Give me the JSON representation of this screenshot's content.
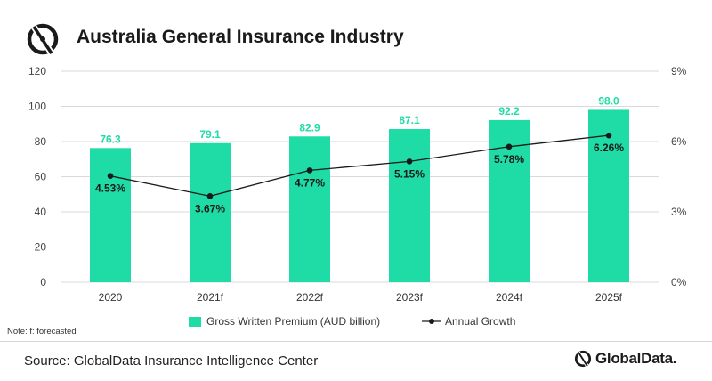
{
  "header": {
    "title": "Australia General Insurance Industry",
    "logo_icon": "globaldata-mark-icon"
  },
  "chart_data": {
    "type": "bar",
    "title": "Australia General Insurance Industry",
    "categories": [
      "2020",
      "2021f",
      "2022f",
      "2023f",
      "2024f",
      "2025f"
    ],
    "series": [
      {
        "name": "Gross Written Premium (AUD billion)",
        "type": "bar",
        "axis": "left",
        "values": [
          76.3,
          79.1,
          82.9,
          87.1,
          92.2,
          98.0
        ],
        "labels": [
          "76.3",
          "79.1",
          "82.9",
          "87.1",
          "92.2",
          "98.0"
        ],
        "color": "#1fdba6"
      },
      {
        "name": "Annual Growth",
        "type": "line",
        "axis": "right",
        "values": [
          4.53,
          3.67,
          4.77,
          5.15,
          5.78,
          6.26
        ],
        "labels": [
          "4.53%",
          "3.67%",
          "4.77%",
          "5.15%",
          "5.78%",
          "6.26%"
        ],
        "color": "#1a1a1a"
      }
    ],
    "y_left": {
      "ylim": [
        0,
        120
      ],
      "ticks": [
        "0",
        "20",
        "40",
        "60",
        "80",
        "100",
        "120"
      ]
    },
    "y_right": {
      "ylim": [
        0,
        9
      ],
      "ticks": [
        "0%",
        "3%",
        "6%",
        "9%"
      ]
    },
    "grid": true,
    "legend": "bottom-center",
    "label_color": "#1fdba6"
  },
  "note": "Note: f: forecasted",
  "footer": {
    "source": "Source: GlobalData Insurance Intelligence Center",
    "brand_name": "GlobalData.",
    "brand_icon": "globaldata-logo-icon"
  }
}
